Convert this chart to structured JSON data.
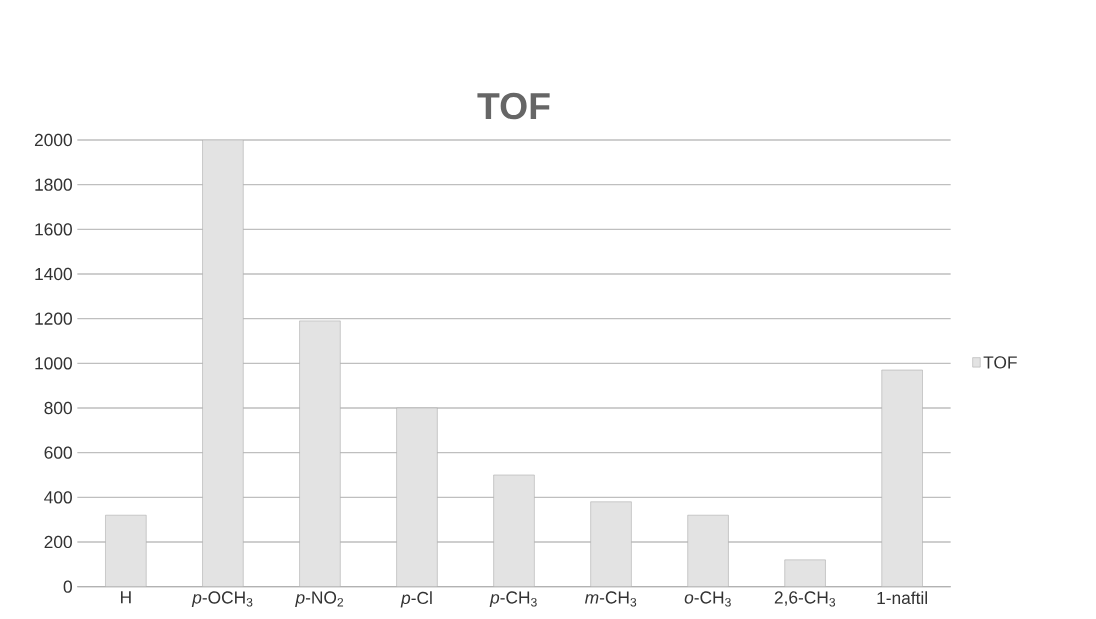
{
  "chart_data": {
    "type": "bar",
    "title": "TOF",
    "categories": [
      "H",
      "*p*-OCH$_{3}$",
      "*p*-NO$_{2}$",
      "*p*-Cl",
      "*p*-CH$_{3}$",
      "*m*-CH$_{3}$",
      "*o*-CH$_{3}$",
      "2,6-CH$_{3}$",
      "1-naftil"
    ],
    "series": [
      {
        "name": "TOF",
        "color": "#e3e3e3",
        "values": [
          320,
          2000,
          1190,
          800,
          500,
          380,
          320,
          120,
          970
        ]
      }
    ],
    "ylim": [
      0,
      2000
    ],
    "yticks": [
      0,
      200,
      400,
      600,
      800,
      1000,
      1200,
      1400,
      1600,
      1800,
      2000
    ],
    "grid": "y",
    "legend": "right"
  }
}
